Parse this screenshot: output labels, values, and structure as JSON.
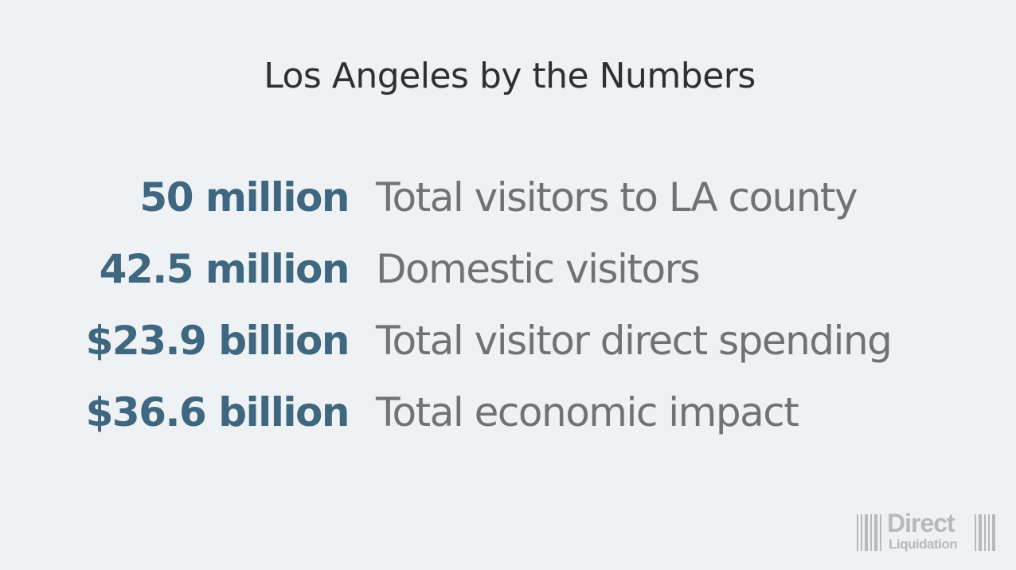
{
  "title": "Los Angeles by the Numbers",
  "stats": [
    {
      "value": "50 million",
      "label": "Total visitors to LA county"
    },
    {
      "value": "42.5 million",
      "label": "Domestic visitors"
    },
    {
      "value": "$23.9 billion",
      "label": "Total visitor direct spending"
    },
    {
      "value": "$36.6 billion",
      "label": "Total economic impact"
    }
  ],
  "logo": {
    "line1": "Direct",
    "line2": "Liquidation",
    "icon": "barcode-icon"
  },
  "colors": {
    "background": "#eff2f5",
    "title": "#2f3033",
    "value": "#3f6780",
    "label": "#717273",
    "logo": "#b7b9bb"
  }
}
